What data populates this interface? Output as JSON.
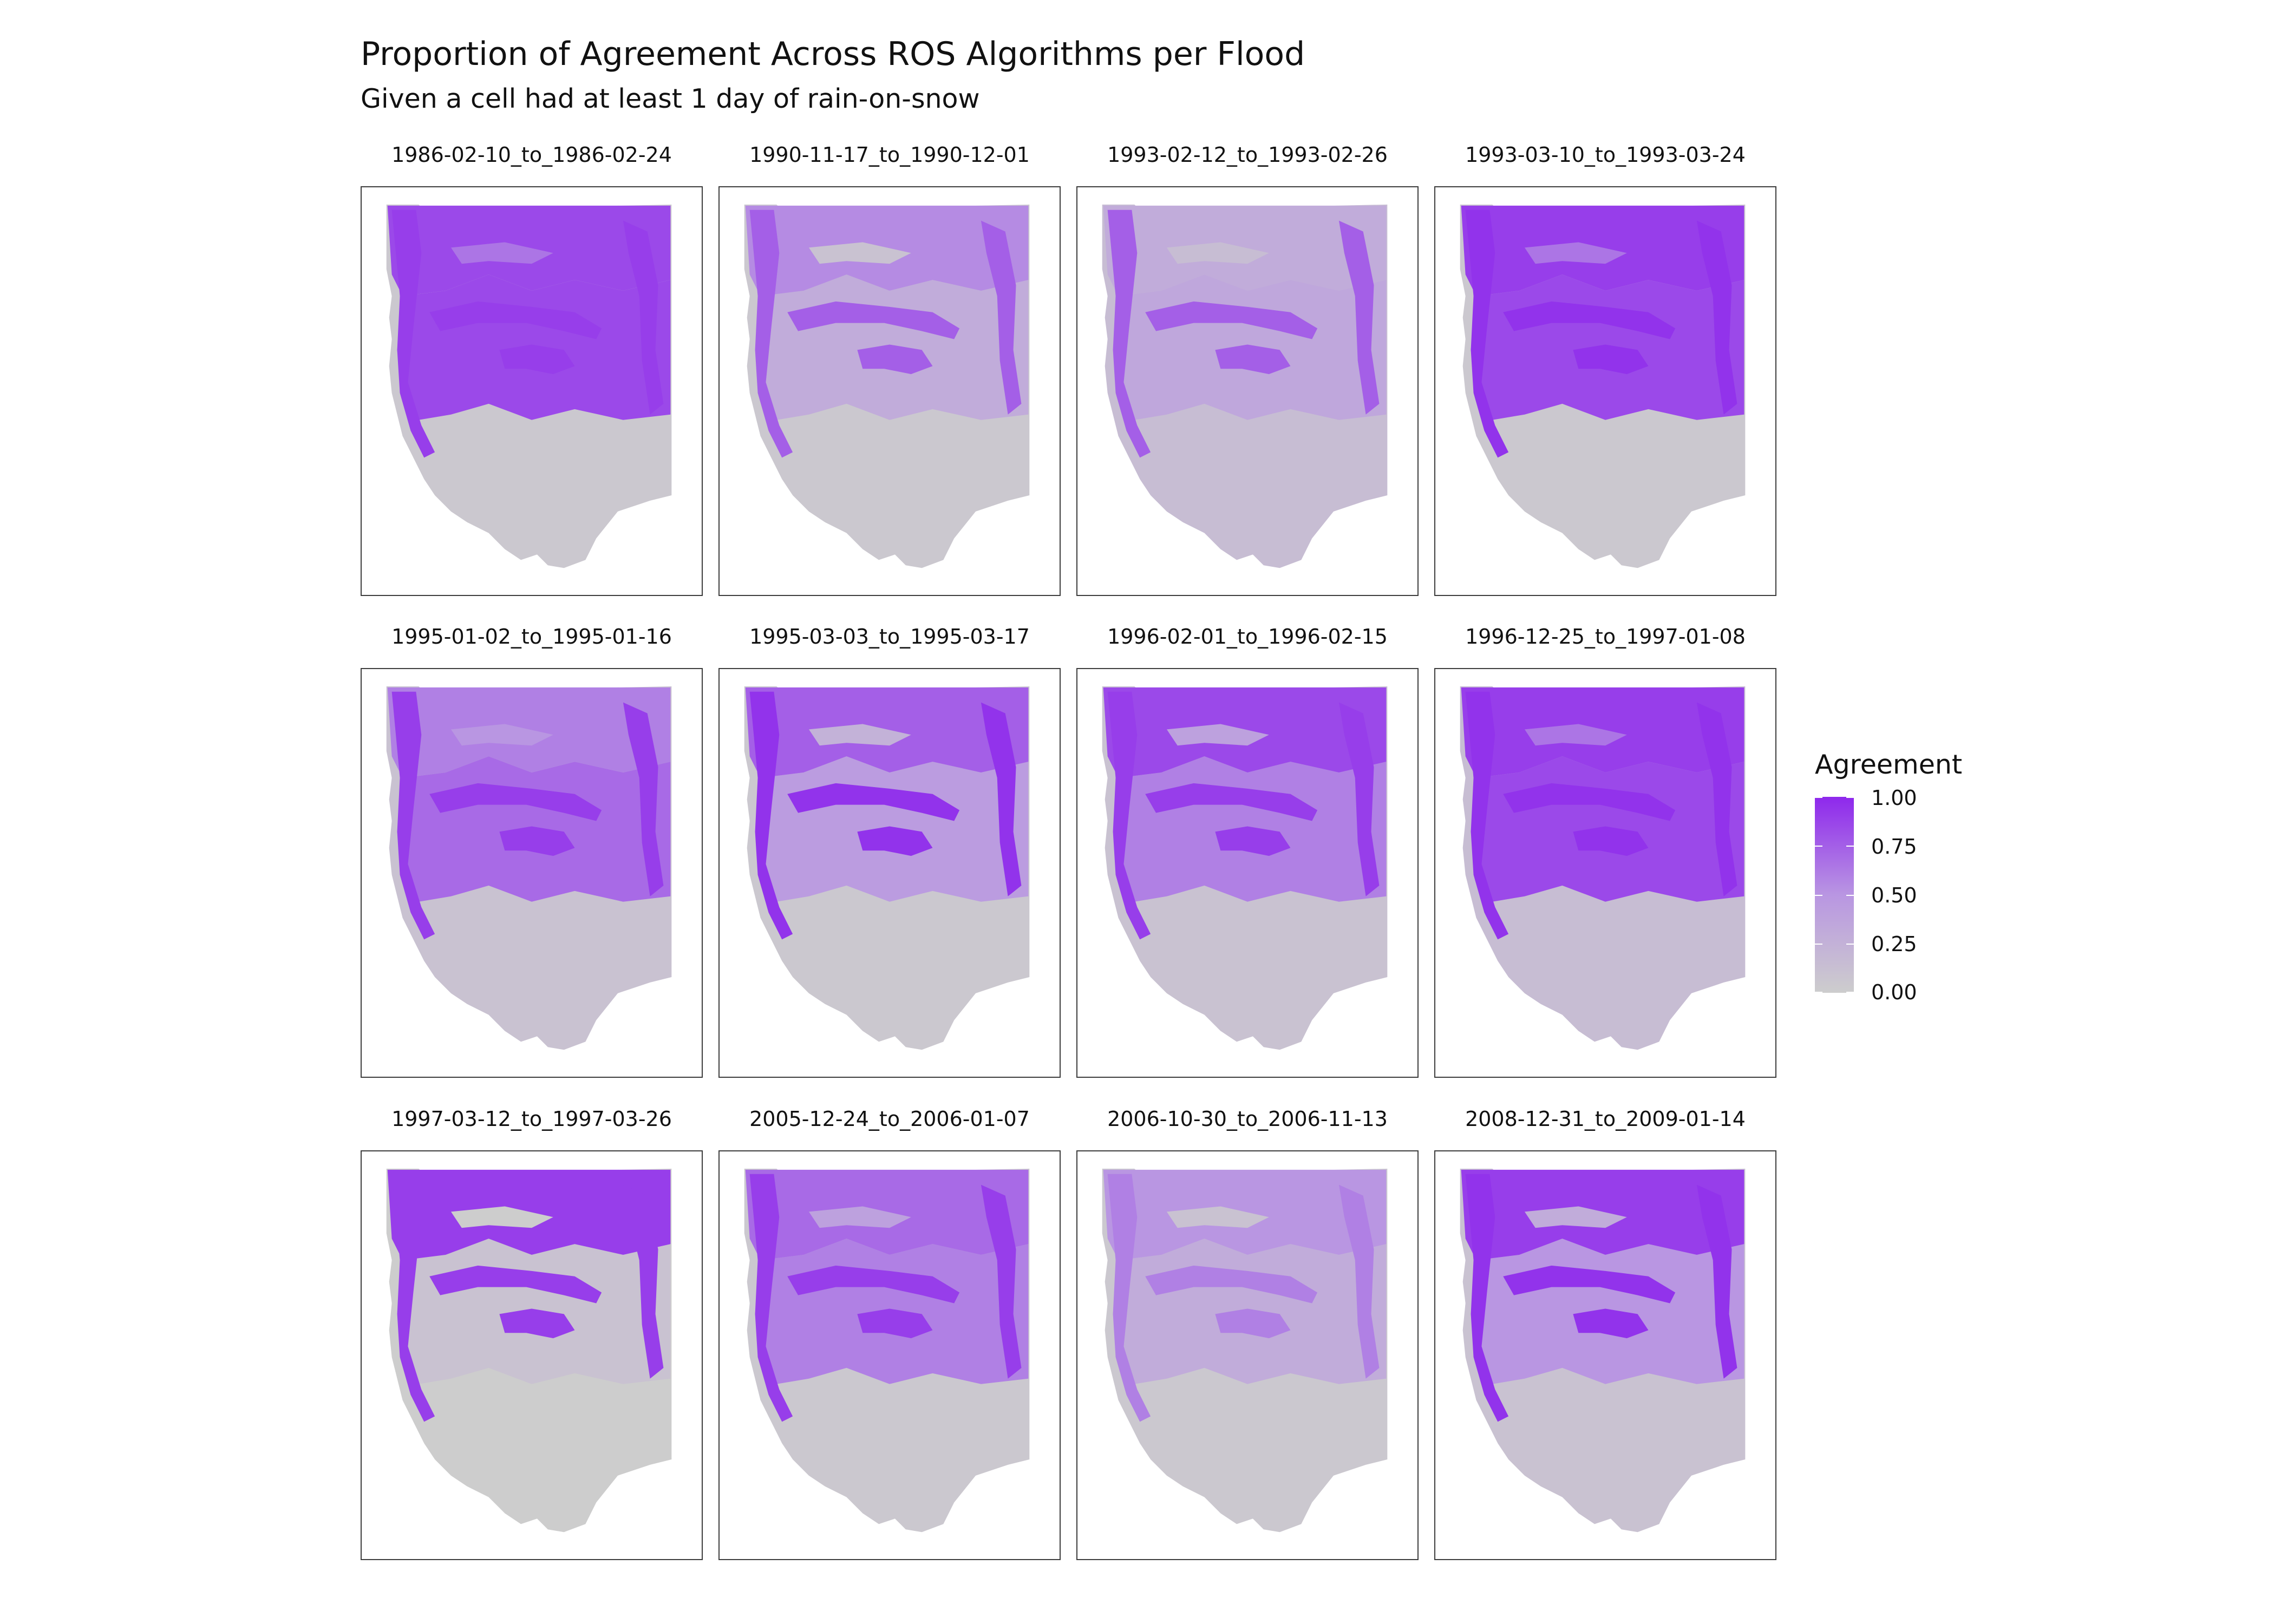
{
  "title": "Proportion of Agreement Across ROS Algorithms per Flood",
  "subtitle": "Given a cell had at least 1 day of rain-on-snow",
  "colors": {
    "low": "#cdcdcd",
    "mid": "#b996e2",
    "high": "#8e28ec",
    "panel_border": "#3d3d3d",
    "background": "#ffffff"
  },
  "legend": {
    "title": "Agreement",
    "ticks": [
      "1.00",
      "0.75",
      "0.50",
      "0.25",
      "0.00"
    ],
    "min": 0,
    "max": 1
  },
  "facets": [
    {
      "label": "1986-02-10_to_1986-02-24",
      "agreement": {
        "north": 0.85,
        "central": 0.85,
        "mountains": 0.9,
        "south": 0.05
      }
    },
    {
      "label": "1990-11-17_to_1990-12-01",
      "agreement": {
        "north": 0.55,
        "central": 0.3,
        "mountains": 0.75,
        "south": 0.05
      }
    },
    {
      "label": "1993-02-12_to_1993-02-26",
      "agreement": {
        "north": 0.3,
        "central": 0.35,
        "mountains": 0.75,
        "south": 0.15
      }
    },
    {
      "label": "1993-03-10_to_1993-03-24",
      "agreement": {
        "north": 0.9,
        "central": 0.85,
        "mountains": 0.95,
        "south": 0.05
      }
    },
    {
      "label": "1995-01-02_to_1995-01-16",
      "agreement": {
        "north": 0.6,
        "central": 0.7,
        "mountains": 0.9,
        "south": 0.1
      }
    },
    {
      "label": "1995-03-03_to_1995-03-17",
      "agreement": {
        "north": 0.75,
        "central": 0.45,
        "mountains": 0.95,
        "south": 0.05
      }
    },
    {
      "label": "1996-02-01_to_1996-02-15",
      "agreement": {
        "north": 0.85,
        "central": 0.6,
        "mountains": 0.9,
        "south": 0.1
      }
    },
    {
      "label": "1996-12-25_to_1997-01-08",
      "agreement": {
        "north": 0.9,
        "central": 0.85,
        "mountains": 0.95,
        "south": 0.15
      }
    },
    {
      "label": "1997-03-12_to_1997-03-26",
      "agreement": {
        "north": 0.9,
        "central": 0.1,
        "mountains": 0.9,
        "south": 0.0
      }
    },
    {
      "label": "2005-12-24_to_2006-01-07",
      "agreement": {
        "north": 0.7,
        "central": 0.6,
        "mountains": 0.9,
        "south": 0.05
      }
    },
    {
      "label": "2006-10-30_to_2006-11-13",
      "agreement": {
        "north": 0.5,
        "central": 0.3,
        "mountains": 0.6,
        "south": 0.05
      }
    },
    {
      "label": "2008-12-31_to_2009-01-14",
      "agreement": {
        "north": 0.9,
        "central": 0.5,
        "mountains": 0.95,
        "south": 0.1
      }
    }
  ]
}
